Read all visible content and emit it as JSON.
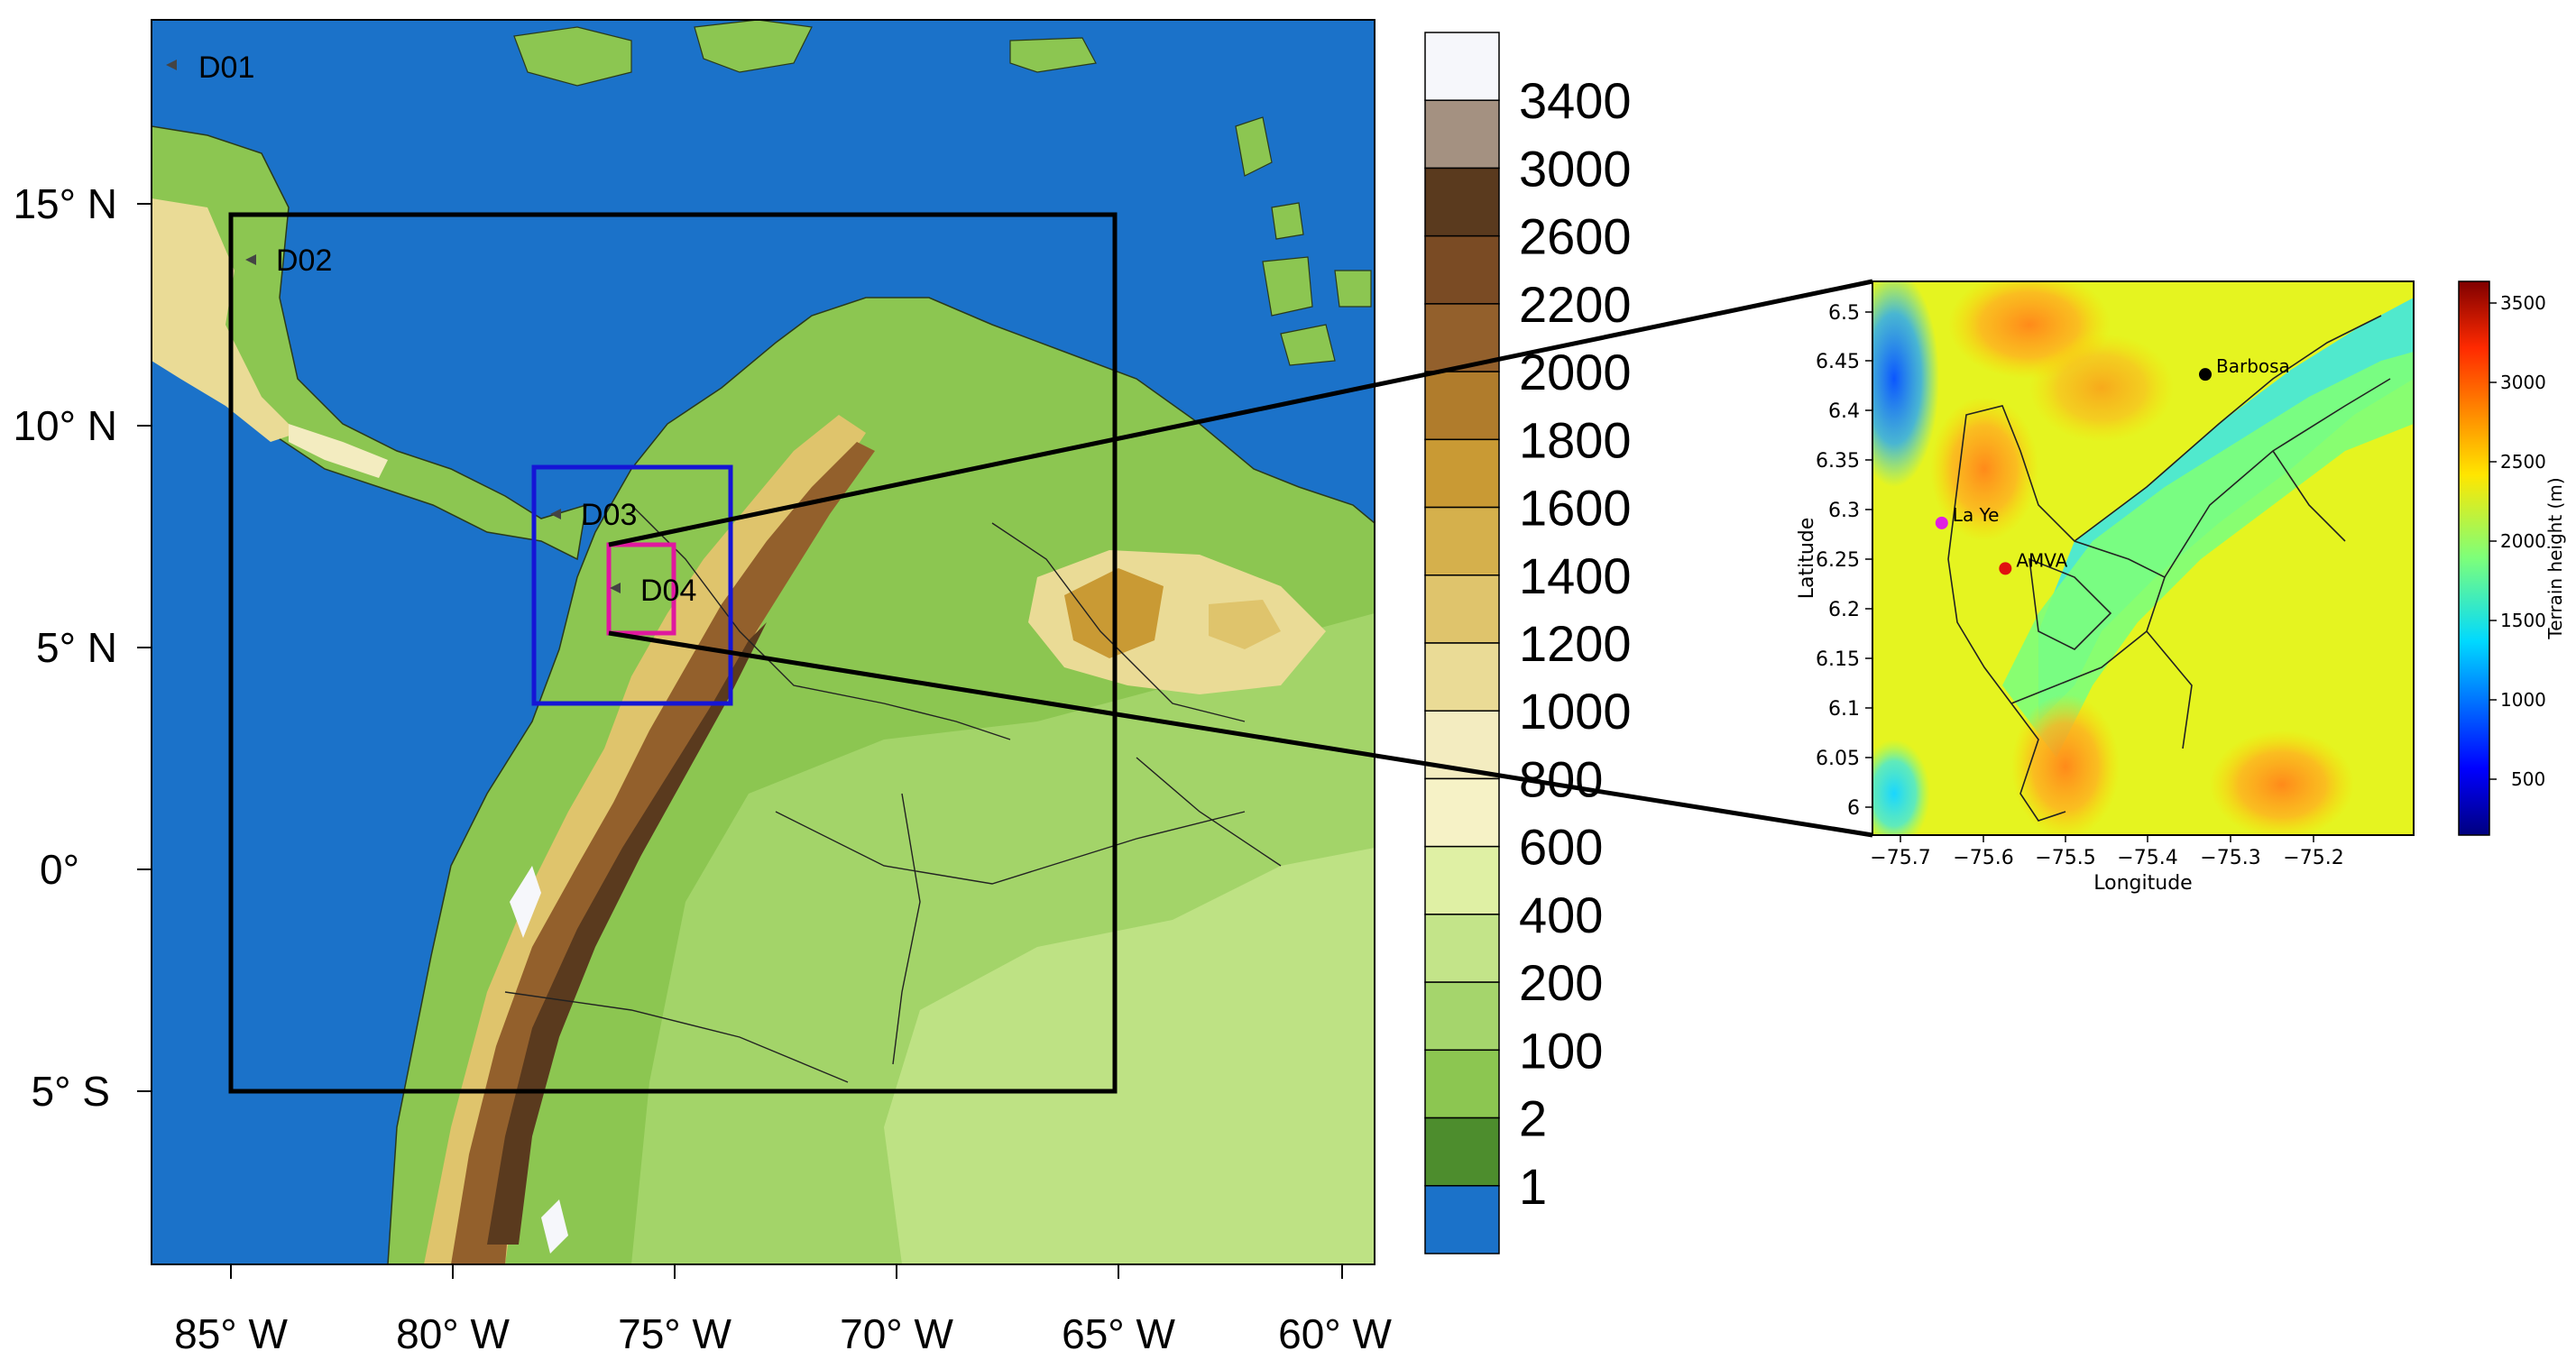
{
  "main_map": {
    "lon_ticks": [
      "85° W",
      "80° W",
      "75° W",
      "70° W",
      "65° W",
      "60° W"
    ],
    "lat_ticks": [
      "15° N",
      "10° N",
      "5° N",
      "0°",
      "5° S"
    ],
    "domains": [
      {
        "label": "D01",
        "color": "#000000"
      },
      {
        "label": "D02",
        "color": "#000000"
      },
      {
        "label": "D03",
        "color": "#1515d6"
      },
      {
        "label": "D04",
        "color": "#e0189f"
      }
    ]
  },
  "colorbar": {
    "labels": [
      "3400",
      "3000",
      "2600",
      "2200",
      "2000",
      "1800",
      "1600",
      "1400",
      "1200",
      "1000",
      "800",
      "600",
      "400",
      "200",
      "100",
      "2",
      "1"
    ],
    "colors": [
      "#f6f7fb",
      "#a49181",
      "#5a3a1e",
      "#7a4b24",
      "#93602c",
      "#b07c2c",
      "#c99a34",
      "#d5b04c",
      "#dfc46c",
      "#eadb96",
      "#f3ecc0",
      "#f6f2c6",
      "#dff0a4",
      "#c3e489",
      "#a5d56c",
      "#8cc651",
      "#4d8d2d",
      "#1b72c9"
    ]
  },
  "inset": {
    "xlabel": "Longitude",
    "ylabel": "Latitude",
    "x_ticks": [
      "−75.7",
      "−75.6",
      "−75.5",
      "−75.4",
      "−75.3",
      "−75.2"
    ],
    "y_ticks": [
      "6.5",
      "6.45",
      "6.4",
      "6.35",
      "6.3",
      "6.25",
      "6.2",
      "6.15",
      "6.1",
      "6.05",
      "6"
    ],
    "stations": [
      {
        "name": "Barbosa",
        "lon": -75.331,
        "lat": 6.437,
        "color": "#000000"
      },
      {
        "name": "La Ye",
        "lon": -75.65,
        "lat": 6.287,
        "color": "#e020e0"
      },
      {
        "name": "AMVA",
        "lon": -75.573,
        "lat": 6.241,
        "color": "#e01010"
      }
    ],
    "colorbar_label": "Terrain height (m)",
    "colorbar_ticks": [
      "3500",
      "3000",
      "2500",
      "2000",
      "1500",
      "1000",
      "500"
    ]
  }
}
